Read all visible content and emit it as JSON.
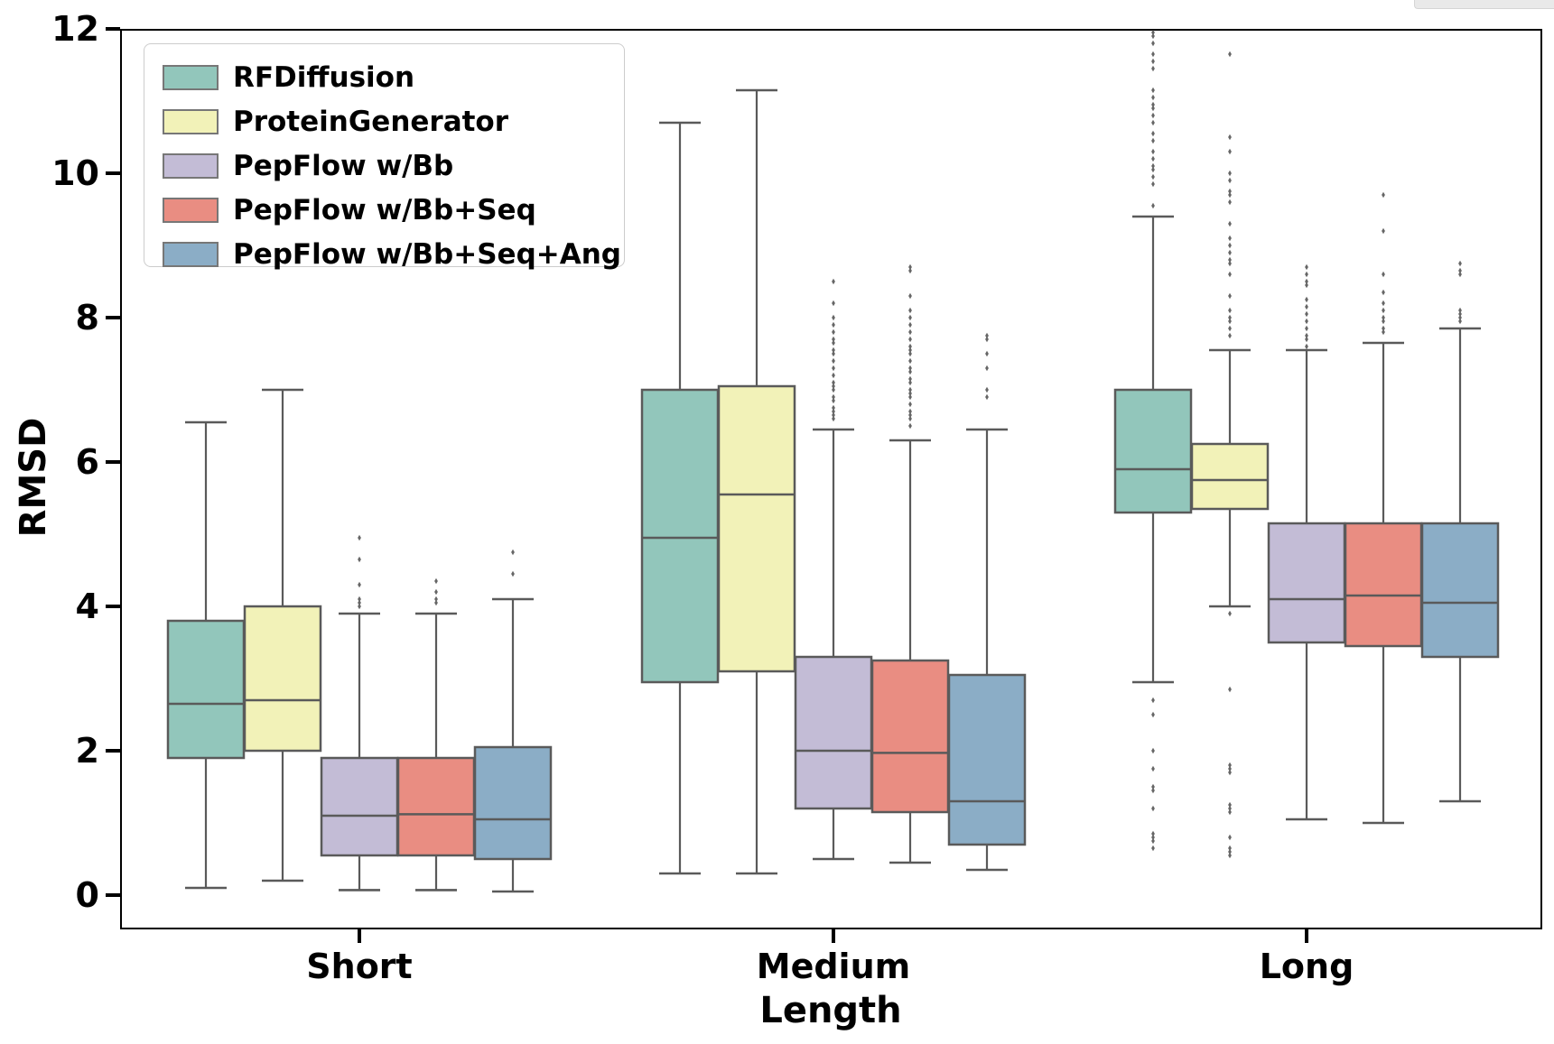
{
  "figure": {
    "background": "#ffffff"
  },
  "artifact": {
    "color": "#e9e9e9"
  },
  "chart_data": {
    "type": "boxplot",
    "title": "",
    "xlabel": "Length",
    "ylabel": "RMSD",
    "categories": [
      "Short",
      "Medium",
      "Long"
    ],
    "yticks": [
      0,
      2,
      4,
      6,
      8,
      10,
      12
    ],
    "ylim": [
      -0.48,
      12.0
    ],
    "grid": false,
    "legend_position": "upper left",
    "edge_color": "#5a5a5a",
    "outlier_color": "#666666",
    "series": [
      {
        "name": "RFDiffusion",
        "color": "#92c6bb",
        "boxes": [
          {
            "category": "Short",
            "whislo": 0.1,
            "q1": 1.9,
            "med": 2.65,
            "q3": 3.8,
            "whishi": 6.55,
            "outliers": []
          },
          {
            "category": "Medium",
            "whislo": 0.3,
            "q1": 2.95,
            "med": 4.95,
            "q3": 7.0,
            "whishi": 10.7,
            "outliers": []
          },
          {
            "category": "Long",
            "whislo": 2.95,
            "q1": 5.3,
            "med": 5.9,
            "q3": 7.0,
            "whishi": 9.4,
            "outliers": [
              9.55,
              9.85,
              9.95,
              10.05,
              10.1,
              10.2,
              10.3,
              10.45,
              10.55,
              10.7,
              10.8,
              10.9,
              10.95,
              11.05,
              11.15,
              11.45,
              11.55,
              11.65,
              11.8,
              11.9,
              11.95,
              2.7,
              2.5,
              2.0,
              1.75,
              1.5,
              1.45,
              1.2,
              0.85,
              0.8,
              0.75,
              0.65
            ]
          }
        ]
      },
      {
        "name": "ProteinGenerator",
        "color": "#f2f2b8",
        "boxes": [
          {
            "category": "Short",
            "whislo": 0.2,
            "q1": 2.0,
            "med": 2.7,
            "q3": 4.0,
            "whishi": 7.0,
            "outliers": []
          },
          {
            "category": "Medium",
            "whislo": 0.3,
            "q1": 3.1,
            "med": 5.55,
            "q3": 7.05,
            "whishi": 11.15,
            "outliers": []
          },
          {
            "category": "Long",
            "whislo": 4.0,
            "q1": 5.35,
            "med": 5.75,
            "q3": 6.25,
            "whishi": 7.55,
            "outliers": [
              11.65,
              10.5,
              10.3,
              10.0,
              9.9,
              9.75,
              9.7,
              9.6,
              9.3,
              9.1,
              9.0,
              8.9,
              8.8,
              8.75,
              8.6,
              8.3,
              8.1,
              8.0,
              7.95,
              7.85,
              7.75,
              3.9,
              2.85,
              1.8,
              1.75,
              1.7,
              1.25,
              1.2,
              1.15,
              0.8,
              0.65,
              0.6,
              0.55
            ]
          }
        ]
      },
      {
        "name": "PepFlow w/Bb",
        "color": "#c3bcd6",
        "boxes": [
          {
            "category": "Short",
            "whislo": 0.07,
            "q1": 0.55,
            "med": 1.1,
            "q3": 1.9,
            "whishi": 3.9,
            "outliers": [
              4.95,
              4.65,
              4.3,
              4.1,
              4.05,
              4.0
            ]
          },
          {
            "category": "Medium",
            "whislo": 0.5,
            "q1": 1.2,
            "med": 2.0,
            "q3": 3.3,
            "whishi": 6.45,
            "outliers": [
              8.5,
              8.2,
              8.0,
              7.9,
              7.8,
              7.7,
              7.65,
              7.55,
              7.5,
              7.4,
              7.3,
              7.2,
              7.1,
              7.05,
              7.0,
              6.9,
              6.85,
              6.75,
              6.7,
              6.65,
              6.6
            ]
          },
          {
            "category": "Long",
            "whislo": 1.05,
            "q1": 3.5,
            "med": 4.1,
            "q3": 5.15,
            "whishi": 7.55,
            "outliers": [
              8.7,
              8.6,
              8.5,
              8.45,
              8.25,
              8.15,
              8.05,
              7.95,
              7.85,
              7.75,
              7.7,
              7.6
            ]
          }
        ]
      },
      {
        "name": "PepFlow w/Bb+Seq",
        "color": "#e98d82",
        "boxes": [
          {
            "category": "Short",
            "whislo": 0.07,
            "q1": 0.55,
            "med": 1.12,
            "q3": 1.9,
            "whishi": 3.9,
            "outliers": [
              4.35,
              4.2,
              4.1,
              4.05
            ]
          },
          {
            "category": "Medium",
            "whislo": 0.45,
            "q1": 1.15,
            "med": 1.97,
            "q3": 3.25,
            "whishi": 6.3,
            "outliers": [
              8.7,
              8.65,
              8.3,
              8.1,
              8.0,
              7.9,
              7.8,
              7.7,
              7.6,
              7.55,
              7.5,
              7.4,
              7.3,
              7.25,
              7.15,
              7.1,
              7.0,
              6.95,
              6.9,
              6.8,
              6.7,
              6.65,
              6.6,
              6.5
            ]
          },
          {
            "category": "Long",
            "whislo": 1.0,
            "q1": 3.45,
            "med": 4.15,
            "q3": 5.15,
            "whishi": 7.65,
            "outliers": [
              9.7,
              9.2,
              8.6,
              8.35,
              8.2,
              8.1,
              8.0,
              7.95,
              7.85,
              7.8
            ]
          }
        ]
      },
      {
        "name": "PepFlow w/Bb+Seq+Ang",
        "color": "#8badc6",
        "boxes": [
          {
            "category": "Short",
            "whislo": 0.05,
            "q1": 0.5,
            "med": 1.05,
            "q3": 2.05,
            "whishi": 4.1,
            "outliers": [
              4.75,
              4.45
            ]
          },
          {
            "category": "Medium",
            "whislo": 0.35,
            "q1": 0.7,
            "med": 1.3,
            "q3": 3.05,
            "whishi": 6.45,
            "outliers": [
              7.75,
              7.7,
              7.5,
              7.3,
              7.0,
              6.9
            ]
          },
          {
            "category": "Long",
            "whislo": 1.3,
            "q1": 3.3,
            "med": 4.05,
            "q3": 5.15,
            "whishi": 7.85,
            "outliers": [
              8.75,
              8.65,
              8.6,
              8.1,
              8.05,
              8.0,
              7.95
            ]
          }
        ]
      }
    ]
  }
}
